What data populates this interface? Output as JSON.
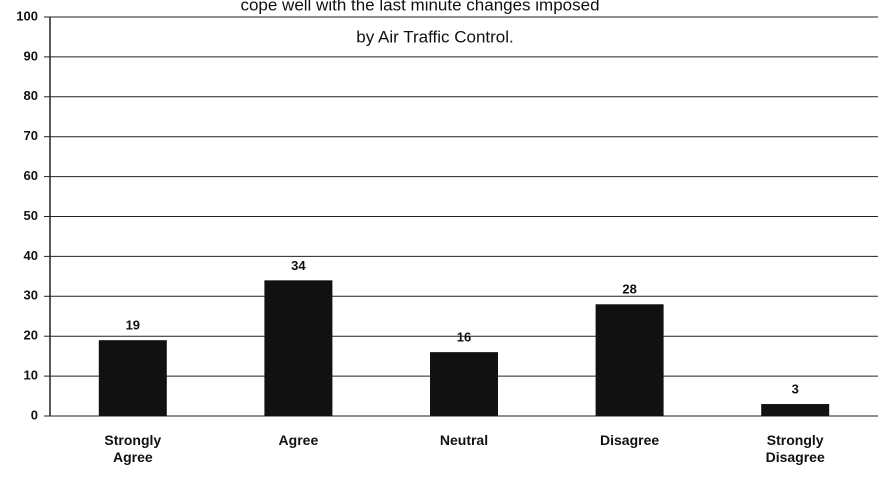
{
  "chart_data": {
    "type": "bar",
    "title": [
      "cope well with the last minute changes imposed",
      "by Air Traffic Control."
    ],
    "categories": [
      "Strongly Agree",
      "Agree",
      "Neutral",
      "Disagree",
      "Strongly Disagree"
    ],
    "values": [
      19,
      34,
      16,
      28,
      3
    ],
    "color": "#111111",
    "ylim": [
      0,
      100
    ],
    "yticks": [
      0,
      10,
      20,
      30,
      40,
      50,
      60,
      70,
      80,
      90,
      100
    ],
    "grid": true
  }
}
